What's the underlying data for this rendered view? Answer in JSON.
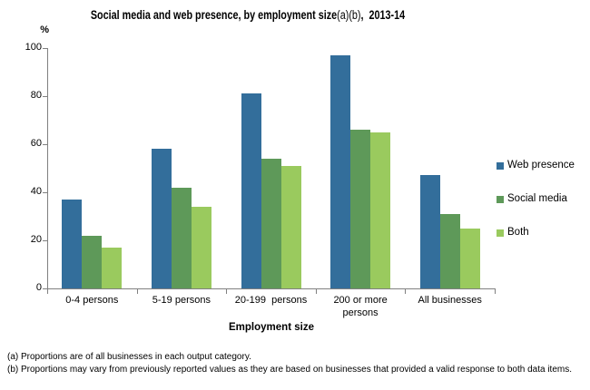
{
  "title": {
    "main": "Social media and web presence, by employment size",
    "footnote_marks": "(a)(b)",
    "suffix": ",  2013-14"
  },
  "chart_data": {
    "type": "bar",
    "title": "Social media and web presence, by employment size(a)(b), 2013-14",
    "unit_label": "%",
    "xlabel": "Employment size",
    "ylabel": "%",
    "ylim": [
      0,
      100
    ],
    "yticks": [
      0,
      20,
      40,
      60,
      80,
      100
    ],
    "grid": false,
    "legend_position": "right",
    "axis_color": "#808080",
    "categories": [
      "0-4 persons",
      "5-19 persons",
      "20-199  persons",
      "200 or more persons",
      "All businesses"
    ],
    "series": [
      {
        "name": "Web presence",
        "color": "#336E9B",
        "values": [
          37,
          58,
          81,
          97,
          47
        ]
      },
      {
        "name": "Social media",
        "color": "#5E9959",
        "values": [
          22,
          42,
          54,
          66,
          31
        ]
      },
      {
        "name": "Both",
        "color": "#9ACA5E",
        "values": [
          17,
          34,
          51,
          65,
          25
        ]
      }
    ]
  },
  "footnotes": [
    "(a) Proportions are of all businesses in each output category.",
    "(b) Proportions may vary from previously reported values as they are based on businesses that provided a valid response to both data items."
  ]
}
